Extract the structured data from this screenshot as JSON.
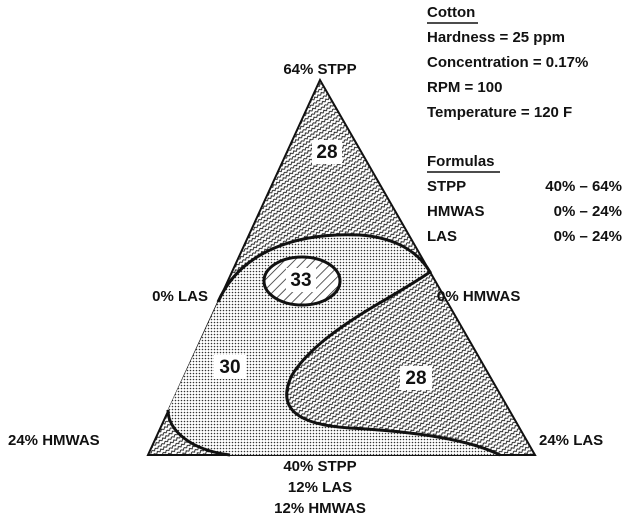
{
  "info": {
    "title": "Cotton",
    "lines": [
      "Hardness = 25 ppm",
      "Concentration = 0.17%",
      "RPM = 100",
      "Temperature = 120  F"
    ]
  },
  "formulas": {
    "title": "Formulas",
    "rows": [
      [
        "STPP",
        "40% – 64%"
      ],
      [
        "HMWAS",
        "0% – 24%"
      ],
      [
        "LAS",
        "0% – 24%"
      ]
    ]
  },
  "vertices": {
    "top": "64% STPP",
    "left": "24% HMWAS",
    "right": "24% LAS"
  },
  "edges": {
    "left": "0% LAS",
    "right": "0% HMWAS",
    "bottom": [
      "40% STPP",
      "12% LAS",
      "12% HMWAS"
    ]
  },
  "regions": [
    "28",
    "33",
    "30",
    "28"
  ]
}
